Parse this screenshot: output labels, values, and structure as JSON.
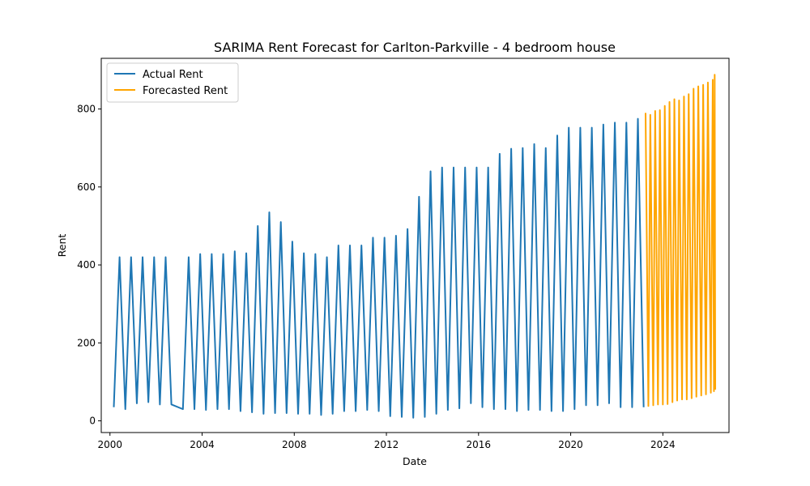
{
  "chart_data": {
    "type": "line",
    "title": "SARIMA Rent Forecast for Carlton-Parkville - 4 bedroom house",
    "xlabel": "Date",
    "ylabel": "Rent",
    "x_ticks": [
      "2000",
      "2004",
      "2008",
      "2012",
      "2016",
      "2020",
      "2024"
    ],
    "y_ticks": [
      "0",
      "200",
      "400",
      "600",
      "800"
    ],
    "xlim": [
      "1999-08-15",
      "2026-11-15"
    ],
    "ylim": [
      -30,
      930
    ],
    "grid": false,
    "legend_position": "top-left",
    "series": [
      {
        "name": "Actual Rent",
        "color": "#1f77b4",
        "points": [
          [
            "2000-03-01",
            35
          ],
          [
            "2000-06-01",
            420
          ],
          [
            "2000-09-01",
            30
          ],
          [
            "2000-12-01",
            420
          ],
          [
            "2001-03-01",
            45
          ],
          [
            "2001-06-01",
            420
          ],
          [
            "2001-09-01",
            48
          ],
          [
            "2001-12-01",
            420
          ],
          [
            "2002-03-01",
            42
          ],
          [
            "2002-06-01",
            420
          ],
          [
            "2002-09-01",
            42
          ],
          [
            "2003-03-01",
            30
          ],
          [
            "2003-06-01",
            420
          ],
          [
            "2003-09-01",
            30
          ],
          [
            "2003-12-01",
            428
          ],
          [
            "2004-03-01",
            28
          ],
          [
            "2004-06-01",
            428
          ],
          [
            "2004-09-01",
            30
          ],
          [
            "2004-12-01",
            428
          ],
          [
            "2005-03-01",
            30
          ],
          [
            "2005-06-01",
            435
          ],
          [
            "2005-09-01",
            25
          ],
          [
            "2005-12-01",
            430
          ],
          [
            "2006-03-01",
            22
          ],
          [
            "2006-06-01",
            500
          ],
          [
            "2006-09-01",
            18
          ],
          [
            "2006-12-01",
            535
          ],
          [
            "2007-03-01",
            20
          ],
          [
            "2007-06-01",
            510
          ],
          [
            "2007-09-01",
            20
          ],
          [
            "2007-12-01",
            460
          ],
          [
            "2008-03-01",
            18
          ],
          [
            "2008-06-01",
            430
          ],
          [
            "2008-09-01",
            18
          ],
          [
            "2008-12-01",
            428
          ],
          [
            "2009-03-01",
            15
          ],
          [
            "2009-06-01",
            420
          ],
          [
            "2009-09-01",
            18
          ],
          [
            "2009-12-01",
            450
          ],
          [
            "2010-03-01",
            25
          ],
          [
            "2010-06-01",
            450
          ],
          [
            "2010-09-01",
            25
          ],
          [
            "2010-12-01",
            450
          ],
          [
            "2011-03-01",
            28
          ],
          [
            "2011-06-01",
            470
          ],
          [
            "2011-09-01",
            25
          ],
          [
            "2011-12-01",
            470
          ],
          [
            "2012-03-01",
            12
          ],
          [
            "2012-06-01",
            475
          ],
          [
            "2012-09-01",
            10
          ],
          [
            "2012-12-01",
            492
          ],
          [
            "2013-03-01",
            8
          ],
          [
            "2013-06-01",
            575
          ],
          [
            "2013-09-01",
            10
          ],
          [
            "2013-12-01",
            640
          ],
          [
            "2014-03-01",
            18
          ],
          [
            "2014-06-01",
            650
          ],
          [
            "2014-09-01",
            28
          ],
          [
            "2014-12-01",
            650
          ],
          [
            "2015-03-01",
            32
          ],
          [
            "2015-06-01",
            650
          ],
          [
            "2015-09-01",
            45
          ],
          [
            "2015-12-01",
            650
          ],
          [
            "2016-03-01",
            35
          ],
          [
            "2016-06-01",
            650
          ],
          [
            "2016-09-01",
            30
          ],
          [
            "2016-12-01",
            685
          ],
          [
            "2017-03-01",
            30
          ],
          [
            "2017-06-01",
            698
          ],
          [
            "2017-09-01",
            25
          ],
          [
            "2017-12-01",
            700
          ],
          [
            "2018-03-01",
            28
          ],
          [
            "2018-06-01",
            710
          ],
          [
            "2018-09-01",
            28
          ],
          [
            "2018-12-01",
            700
          ],
          [
            "2019-03-01",
            25
          ],
          [
            "2019-06-01",
            732
          ],
          [
            "2019-09-01",
            25
          ],
          [
            "2019-12-01",
            752
          ],
          [
            "2020-03-01",
            30
          ],
          [
            "2020-06-01",
            752
          ],
          [
            "2020-09-01",
            40
          ],
          [
            "2020-12-01",
            752
          ],
          [
            "2021-03-01",
            40
          ],
          [
            "2021-06-01",
            760
          ],
          [
            "2021-09-01",
            45
          ],
          [
            "2021-12-01",
            765
          ],
          [
            "2022-03-01",
            35
          ],
          [
            "2022-06-01",
            765
          ],
          [
            "2022-09-01",
            35
          ],
          [
            "2022-12-01",
            775
          ],
          [
            "2023-03-01",
            35
          ]
        ]
      },
      {
        "name": "Forecasted Rent",
        "color": "#ffa500",
        "points": [
          [
            "2023-04-01",
            790
          ],
          [
            "2023-05-15",
            38
          ],
          [
            "2023-06-15",
            785
          ],
          [
            "2023-08-01",
            40
          ],
          [
            "2023-09-01",
            795
          ],
          [
            "2023-10-15",
            42
          ],
          [
            "2023-11-15",
            797
          ],
          [
            "2024-01-01",
            42
          ],
          [
            "2024-02-01",
            808
          ],
          [
            "2024-03-15",
            43
          ],
          [
            "2024-04-15",
            818
          ],
          [
            "2024-06-01",
            48
          ],
          [
            "2024-07-01",
            825
          ],
          [
            "2024-08-15",
            52
          ],
          [
            "2024-09-15",
            822
          ],
          [
            "2024-11-01",
            55
          ],
          [
            "2024-12-01",
            832
          ],
          [
            "2025-01-15",
            55
          ],
          [
            "2025-02-15",
            838
          ],
          [
            "2025-04-01",
            58
          ],
          [
            "2025-05-01",
            852
          ],
          [
            "2025-06-15",
            62
          ],
          [
            "2025-07-15",
            858
          ],
          [
            "2025-09-01",
            65
          ],
          [
            "2025-10-01",
            862
          ],
          [
            "2025-11-15",
            68
          ],
          [
            "2025-12-15",
            868
          ],
          [
            "2026-02-01",
            72
          ],
          [
            "2026-03-01",
            875
          ],
          [
            "2026-03-20",
            76
          ],
          [
            "2026-04-01",
            888
          ],
          [
            "2026-04-10",
            80
          ]
        ]
      }
    ]
  }
}
